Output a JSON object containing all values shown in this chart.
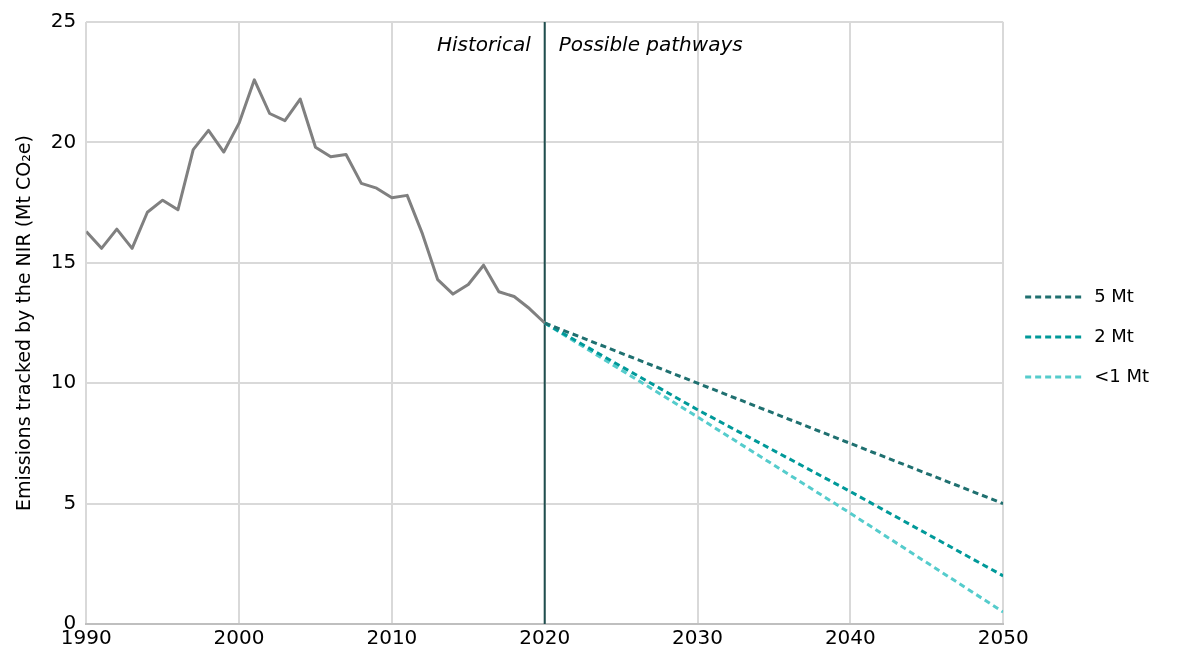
{
  "chart_data": {
    "type": "line",
    "ylabel": "Emissions tracked by the NIR (Mt CO₂e)",
    "xlim": [
      1990,
      2050
    ],
    "xticks": [
      1990,
      2000,
      2010,
      2020,
      2030,
      2040,
      2050
    ],
    "ylim": [
      0,
      25
    ],
    "yticks": [
      0,
      5,
      10,
      15,
      20,
      25
    ],
    "grid": true,
    "legend": "right",
    "marker": "none",
    "series": [
      {
        "color": "#808080",
        "line_style": "solid",
        "x": [
          1990,
          1991,
          1992,
          1993,
          1994,
          1995,
          1996,
          1997,
          1998,
          1999,
          2000,
          2001,
          2002,
          2003,
          2004,
          2005,
          2006,
          2007,
          2008,
          2009,
          2010,
          2011,
          2012,
          2013,
          2014,
          2015,
          2016,
          2017,
          2018,
          2019,
          2020
        ],
        "values": [
          16.3,
          15.6,
          16.4,
          15.6,
          17.1,
          17.6,
          17.2,
          19.7,
          20.5,
          19.6,
          20.8,
          22.6,
          21.2,
          20.9,
          21.8,
          19.8,
          19.4,
          19.5,
          18.3,
          18.1,
          17.7,
          17.8,
          16.2,
          14.3,
          13.7,
          14.1,
          14.9,
          13.8,
          13.6,
          13.1,
          12.5
        ]
      },
      {
        "name": "5 Mt",
        "color": "#1f7070",
        "line_style": "dashed",
        "x": [
          2020,
          2030,
          2040,
          2050
        ],
        "values": [
          12.5,
          10,
          7.5,
          5
        ]
      },
      {
        "name": "2 Mt",
        "color": "#009999",
        "line_style": "dashed",
        "x": [
          2020,
          2030,
          2040,
          2050
        ],
        "values": [
          12.5,
          8.9,
          5.5,
          2
        ]
      },
      {
        "name": "<1 Mt",
        "color": "#55cccc",
        "line_style": "dashed",
        "x": [
          2020,
          2030,
          2040,
          2050
        ],
        "values": [
          12.5,
          8.6,
          4.6,
          0.5
        ]
      }
    ],
    "ref_lines": [
      {
        "axis": "x",
        "value": 2020,
        "color": "#1f4e4e",
        "line_style": "solid"
      }
    ],
    "annotations": [
      "Historical",
      "Possible pathways"
    ]
  }
}
